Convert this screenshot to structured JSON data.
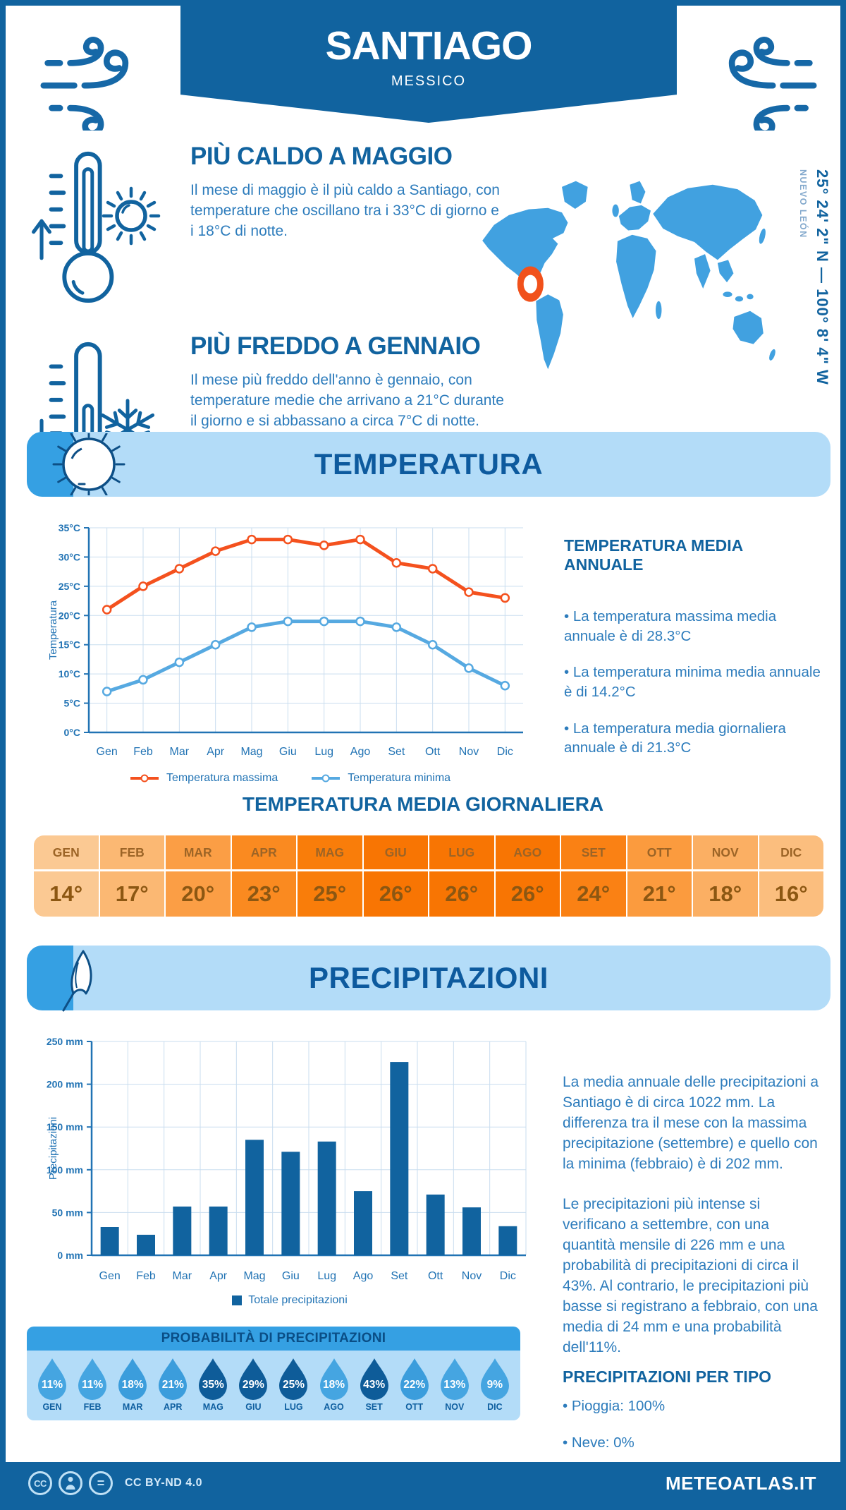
{
  "header": {
    "title": "SANTIAGO",
    "subtitle": "MESSICO"
  },
  "highlights": {
    "hot": {
      "title": "PIÙ CALDO A MAGGIO",
      "text": "Il mese di maggio è il più caldo a Santiago, con temperature che oscillano tra i 33°C di giorno e i 18°C di notte."
    },
    "cold": {
      "title": "PIÙ FREDDO A GENNAIO",
      "text": "Il mese più freddo dell'anno è gennaio, con temperature medie che arrivano a 21°C durante il giorno e si abbassano a circa 7°C di notte."
    }
  },
  "map": {
    "coordinates": "25° 24' 2\" N — 100° 8' 4\" W",
    "region": "NUEVO LEÓN",
    "land_color": "#41A1E0",
    "marker_color": "#F1511B"
  },
  "sections": {
    "temperature_title": "TEMPERATURA",
    "precipitation_title": "PRECIPITAZIONI"
  },
  "annual": {
    "title": "TEMPERATURA MEDIA ANNUALE",
    "bullets": [
      "• La temperatura massima media annuale è di 28.3°C",
      "• La temperatura minima media annuale è di 14.2°C",
      "• La temperatura media giornaliera annuale è di 21.3°C"
    ]
  },
  "daily": {
    "title": "TEMPERATURA MEDIA GIORNALIERA",
    "months": [
      "GEN",
      "FEB",
      "MAR",
      "APR",
      "MAG",
      "GIU",
      "LUG",
      "AGO",
      "SET",
      "OTT",
      "NOV",
      "DIC"
    ],
    "values": [
      "14°",
      "17°",
      "20°",
      "23°",
      "25°",
      "26°",
      "26°",
      "26°",
      "24°",
      "21°",
      "18°",
      "16°"
    ],
    "colors": [
      "#FBC993",
      "#FBB873",
      "#FB9E45",
      "#FA8A20",
      "#F97D0A",
      "#F87503",
      "#F87503",
      "#F87503",
      "#FA8114",
      "#FB9B3E",
      "#FBAF63",
      "#FBBE7E"
    ]
  },
  "precipitation": {
    "para1": "La media annuale delle precipitazioni a Santiago è di circa 1022 mm. La differenza tra il mese con la massima precipitazione (settembre) e quello con la minima (febbraio) è di 202 mm.",
    "para2": "Le precipitazioni più intense si verificano a settembre, con una quantità mensile di 226 mm e una probabilità di precipitazioni di circa il 43%. Al contrario, le precipitazioni più basse si registrano a febbraio, con una media di 24 mm e una probabilità dell'11%."
  },
  "probability": {
    "title": "PROBABILITÀ DI PRECIPITAZIONI",
    "months": [
      "GEN",
      "FEB",
      "MAR",
      "APR",
      "MAG",
      "GIU",
      "LUG",
      "AGO",
      "SET",
      "OTT",
      "NOV",
      "DIC"
    ],
    "values": [
      "11%",
      "11%",
      "18%",
      "21%",
      "35%",
      "29%",
      "25%",
      "18%",
      "43%",
      "22%",
      "13%",
      "9%"
    ],
    "colors": [
      "#45A5E1",
      "#45A5E1",
      "#3B9DDC",
      "#3B9DDC",
      "#0E5C99",
      "#0E5C99",
      "#0E5C99",
      "#45A5E1",
      "#0E5C99",
      "#3B9DDC",
      "#45A5E1",
      "#45A5E1"
    ]
  },
  "types": {
    "title": "PRECIPITAZIONI PER TIPO",
    "bullets": [
      "• Pioggia: 100%",
      "• Neve: 0%"
    ]
  },
  "footer": {
    "license": "CC BY-ND 4.0",
    "brand": "METEOATLAS.IT"
  },
  "icons": [
    "wind-icon",
    "thermometer-hot-icon",
    "sun-icon",
    "arrow-up-icon",
    "thermometer-cold-icon",
    "snowflake-icon",
    "arrow-down-icon",
    "map-marker-icon",
    "umbrella-icon",
    "droplet-icon",
    "cc-icon",
    "cc-attribution-icon",
    "cc-no-derivatives-icon"
  ],
  "chart_data": [
    {
      "type": "line",
      "title": "",
      "categories": [
        "Gen",
        "Feb",
        "Mar",
        "Apr",
        "Mag",
        "Giu",
        "Lug",
        "Ago",
        "Set",
        "Ott",
        "Nov",
        "Dic"
      ],
      "series": [
        {
          "name": "Temperatura massima",
          "color": "#F4511E",
          "values": [
            21,
            25,
            28,
            31,
            33,
            33,
            32,
            33,
            29,
            28,
            24,
            23
          ]
        },
        {
          "name": "Temperatura minima",
          "color": "#56A9E1",
          "values": [
            7,
            9,
            12,
            15,
            18,
            19,
            19,
            19,
            18,
            15,
            11,
            8
          ]
        }
      ],
      "xlabel": "",
      "ylabel": "Temperatura",
      "ylim": [
        0,
        35
      ],
      "ytick_step": 5,
      "ytick_suffix": "°C",
      "grid": true,
      "legend_position": "bottom"
    },
    {
      "type": "bar",
      "title": "",
      "categories": [
        "Gen",
        "Feb",
        "Mar",
        "Apr",
        "Mag",
        "Giu",
        "Lug",
        "Ago",
        "Set",
        "Ott",
        "Nov",
        "Dic"
      ],
      "series": [
        {
          "name": "Totale precipitazioni",
          "color": "#11639F",
          "values": [
            33,
            24,
            57,
            57,
            135,
            121,
            133,
            75,
            226,
            71,
            56,
            34
          ]
        }
      ],
      "xlabel": "",
      "ylabel": "Precipitazioni",
      "ylim": [
        0,
        250
      ],
      "ytick_step": 50,
      "ytick_suffix": " mm",
      "grid": true,
      "legend_position": "bottom"
    }
  ]
}
